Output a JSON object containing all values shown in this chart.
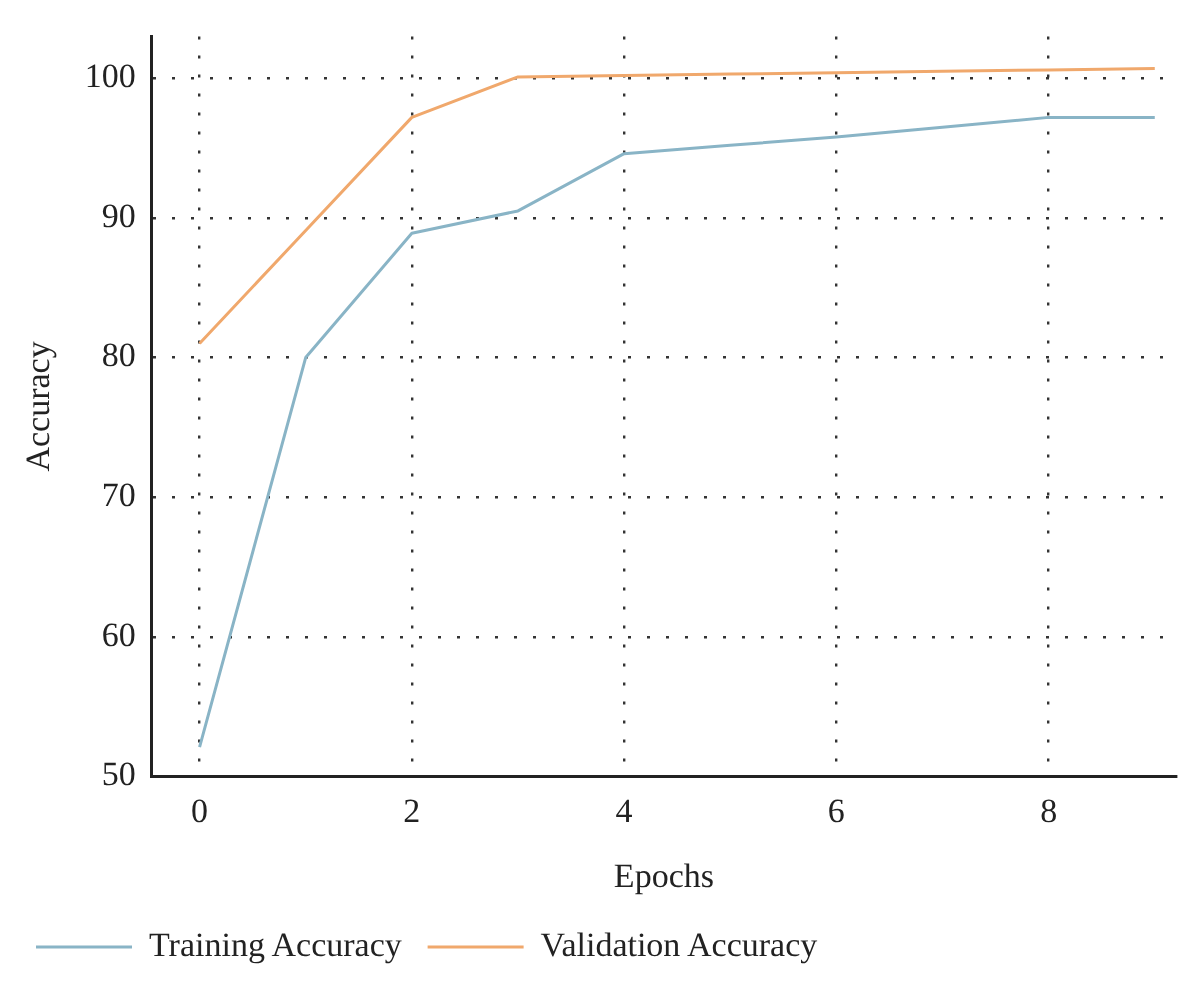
{
  "chart_data": {
    "type": "line",
    "xlabel": "Epochs",
    "ylabel": "Accuracy",
    "x": [
      0,
      1,
      2,
      3,
      4,
      5,
      6,
      7,
      8,
      9
    ],
    "series": [
      {
        "name": "Training Accuracy",
        "color": "#89b4c6",
        "values": [
          52.1,
          80.0,
          88.9,
          90.5,
          94.6,
          95.2,
          95.8,
          96.5,
          97.2,
          97.2
        ]
      },
      {
        "name": "Validation Accuracy",
        "color": "#f0a86c",
        "values": [
          81.0,
          89.1,
          97.2,
          100.1,
          100.2,
          100.3,
          100.4,
          100.5,
          100.6,
          100.7
        ]
      }
    ],
    "xlim": [
      -0.45,
      9.2
    ],
    "xticks": [
      0,
      2,
      4,
      6,
      8
    ],
    "ylim": [
      50,
      103
    ],
    "yticks": [
      50,
      60,
      70,
      80,
      90,
      100
    ],
    "grid": true,
    "line_style": "solid",
    "marker": "none",
    "legend": "bottom"
  }
}
